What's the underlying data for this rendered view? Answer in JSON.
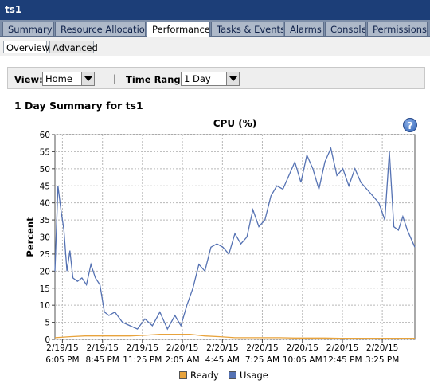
{
  "window": {
    "title": "ts1"
  },
  "tabs": [
    {
      "label": "Summary",
      "active": false
    },
    {
      "label": "Resource Allocation",
      "active": false
    },
    {
      "label": "Performance",
      "active": true
    },
    {
      "label": "Tasks & Events",
      "active": false
    },
    {
      "label": "Alarms",
      "active": false
    },
    {
      "label": "Console",
      "active": false
    },
    {
      "label": "Permissions",
      "active": false
    }
  ],
  "subtabs": [
    {
      "label": "Overview",
      "active": true
    },
    {
      "label": "Advanced",
      "active": false
    }
  ],
  "filters": {
    "view_label": "View:",
    "view_value": "Home",
    "separator": "|",
    "range_label": "Time Range:",
    "range_value": "1 Day"
  },
  "summary_title": "1 Day Summary for ts1",
  "help_icon": "help-icon",
  "chart_data": {
    "type": "line",
    "title": "CPU (%)",
    "ylabel": "Percent",
    "xlabel": "",
    "ylim": [
      0,
      60
    ],
    "yticks": [
      0,
      5,
      10,
      15,
      20,
      25,
      30,
      35,
      40,
      45,
      50,
      55,
      60
    ],
    "xlim": [
      0,
      24
    ],
    "xticks": [
      {
        "x": 0.5,
        "date": "2/19/15",
        "time": "6:05 PM"
      },
      {
        "x": 3.17,
        "date": "2/19/15",
        "time": "8:45 PM"
      },
      {
        "x": 5.83,
        "date": "2/19/15",
        "time": "11:25 PM"
      },
      {
        "x": 8.5,
        "date": "2/20/15",
        "time": "2:05 AM"
      },
      {
        "x": 11.17,
        "date": "2/20/15",
        "time": "4:45 AM"
      },
      {
        "x": 13.83,
        "date": "2/20/15",
        "time": "7:25 AM"
      },
      {
        "x": 16.5,
        "date": "2/20/15",
        "time": "10:05 AM"
      },
      {
        "x": 19.17,
        "date": "2/20/15",
        "time": "12:45 PM"
      },
      {
        "x": 21.83,
        "date": "2/20/15",
        "time": "3:25 PM"
      }
    ],
    "grid": true,
    "legend_position": "bottom",
    "series": [
      {
        "name": "Ready",
        "color": "#e8a33c",
        "x": [
          0,
          1,
          2,
          3,
          4,
          5,
          6,
          7,
          8,
          9,
          10,
          11,
          12,
          13,
          14,
          15,
          16,
          17,
          18,
          19,
          20,
          21,
          22,
          23,
          24
        ],
        "values": [
          0.5,
          0.8,
          1,
          1,
          1,
          1,
          1.2,
          1.5,
          1.5,
          1.5,
          1,
          0.8,
          0.5,
          0.5,
          0.5,
          0.5,
          0.4,
          0.4,
          0.4,
          0.3,
          0.3,
          0.3,
          0.3,
          0.3,
          0.3
        ]
      },
      {
        "name": "Usage",
        "color": "#5572b3",
        "x": [
          0,
          0.2,
          0.4,
          0.6,
          0.8,
          1.0,
          1.2,
          1.5,
          1.8,
          2.1,
          2.4,
          2.7,
          3.0,
          3.3,
          3.6,
          4.0,
          4.5,
          5.0,
          5.5,
          6.0,
          6.5,
          7.0,
          7.5,
          8.0,
          8.4,
          8.8,
          9.2,
          9.6,
          10.0,
          10.4,
          10.8,
          11.2,
          11.6,
          12.0,
          12.4,
          12.8,
          13.2,
          13.6,
          14.0,
          14.4,
          14.8,
          15.2,
          15.6,
          16.0,
          16.4,
          16.8,
          17.2,
          17.6,
          18.0,
          18.4,
          18.8,
          19.2,
          19.6,
          20.0,
          20.4,
          20.8,
          21.2,
          21.6,
          22.0,
          22.3,
          22.6,
          22.9,
          23.2,
          23.5,
          23.8,
          24.0
        ],
        "values": [
          20,
          45,
          38,
          32,
          20,
          26,
          18,
          17,
          18,
          16,
          22,
          18,
          16,
          8,
          7,
          8,
          5,
          4,
          3,
          6,
          4,
          8,
          3,
          7,
          4,
          10,
          15,
          22,
          20,
          27,
          28,
          27,
          25,
          31,
          28,
          30,
          38,
          33,
          35,
          42,
          45,
          44,
          48,
          52,
          46,
          54,
          50,
          44,
          52,
          56,
          48,
          50,
          45,
          50,
          46,
          44,
          42,
          40,
          35,
          55,
          33,
          32,
          36,
          32,
          29,
          27
        ]
      }
    ]
  }
}
